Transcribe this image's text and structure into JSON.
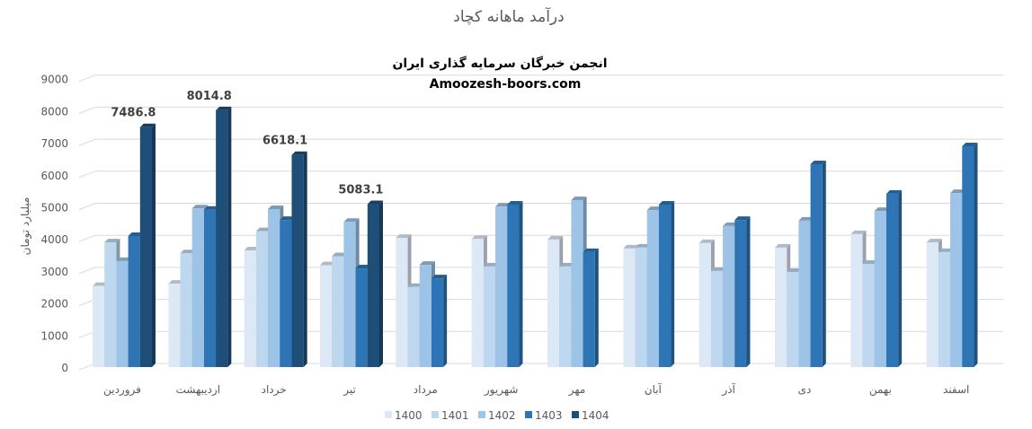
{
  "chart_data": {
    "type": "bar",
    "title": "درآمد ماهانه کچاد",
    "subtitle": "انجمن خبرگان سرمایه گذاری ایران",
    "watermark": "Amoozesh-boors.com",
    "xlabel": "",
    "ylabel": "میلیارد تومان",
    "ylim": [
      0,
      9000
    ],
    "yticks": [
      0,
      1000,
      2000,
      3000,
      4000,
      5000,
      6000,
      7000,
      8000,
      9000
    ],
    "grid": true,
    "legend_position": "bottom",
    "categories": [
      "فروردین",
      "اردیبهشت",
      "خرداد",
      "تیر",
      "مرداد",
      "شهریور",
      "مهر",
      "آبان",
      "آذر",
      "دی",
      "بهمن",
      "اسفند"
    ],
    "series": [
      {
        "name": "1400",
        "color": "#dde8f6",
        "values": [
          2530,
          2600,
          3640,
          3180,
          4030,
          4000,
          3980,
          3700,
          3870,
          3730,
          4150,
          3890
        ]
      },
      {
        "name": "1401",
        "color": "#bdd7ee",
        "values": [
          3890,
          3550,
          4240,
          3460,
          2500,
          3140,
          3140,
          3730,
          3000,
          2970,
          3220,
          3590
        ]
      },
      {
        "name": "1402",
        "color": "#9dc3e6",
        "values": [
          3310,
          4950,
          4930,
          4530,
          3190,
          5010,
          5210,
          4900,
          4400,
          4570,
          4870,
          5430
        ]
      },
      {
        "name": "1403",
        "color": "#2e75b6",
        "values": [
          4090,
          4910,
          4590,
          3080,
          2770,
          5070,
          3590,
          5070,
          4590,
          6330,
          5410,
          6890
        ]
      },
      {
        "name": "1404",
        "color": "#1f4e79",
        "values": [
          7486.8,
          8014.8,
          6618.1,
          5083.1,
          null,
          null,
          null,
          null,
          null,
          null,
          null,
          null
        ]
      }
    ],
    "data_labels": {
      "series": "1404",
      "labels": [
        "7486.8",
        "8014.8",
        "6618.1",
        "5083.1"
      ]
    }
  }
}
